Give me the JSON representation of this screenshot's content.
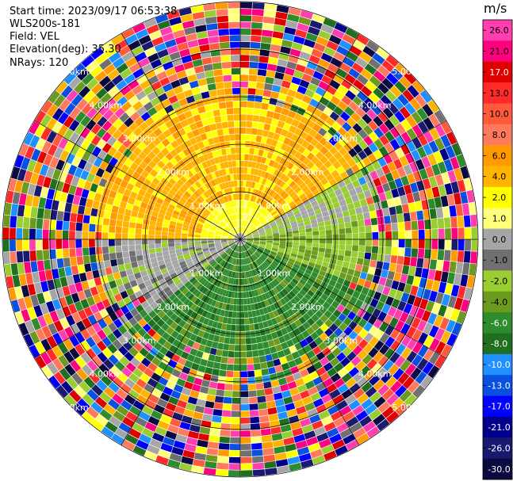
{
  "header": {
    "start_time": "Start time: 2023/09/17 06:53:38",
    "instrument": "WLS200s-181",
    "field": "Field: VEL",
    "elevation": "Elevation(deg): 35.30",
    "nrays": "NRays: 120"
  },
  "chart_data": {
    "type": "heatmap",
    "projection": "polar PPI",
    "field": "VEL",
    "n_rays": 120,
    "range_ring_labels": [
      "1.00km",
      "2.00km",
      "3.00km",
      "4.00km",
      "5.00km"
    ],
    "colorbar": {
      "title": "m/s",
      "ticks": [
        "26.0",
        "21.0",
        "17.0",
        "13.0",
        "10.0",
        "8.0",
        "6.0",
        "4.0",
        "2.0",
        "1.0",
        "0.0",
        "-1.0",
        "-2.0",
        "-4.0",
        "-6.0",
        "-8.0",
        "-10.0",
        "-13.0",
        "-17.0",
        "-21.0",
        "-26.0",
        "-30.0"
      ],
      "colors": [
        "#ff3fb0",
        "#ff007f",
        "#e00000",
        "#ff2a2a",
        "#ff5a3c",
        "#ff7a5c",
        "#ff9a00",
        "#ffb400",
        "#ffff00",
        "#ffff7a",
        "#a6a6a6",
        "#707070",
        "#9acd32",
        "#6b9a1f",
        "#2e8b2e",
        "#1f6f1f",
        "#1e90ff",
        "#0a50e0",
        "#0000ff",
        "#00008b",
        "#191970",
        "#0a0a40"
      ]
    }
  }
}
